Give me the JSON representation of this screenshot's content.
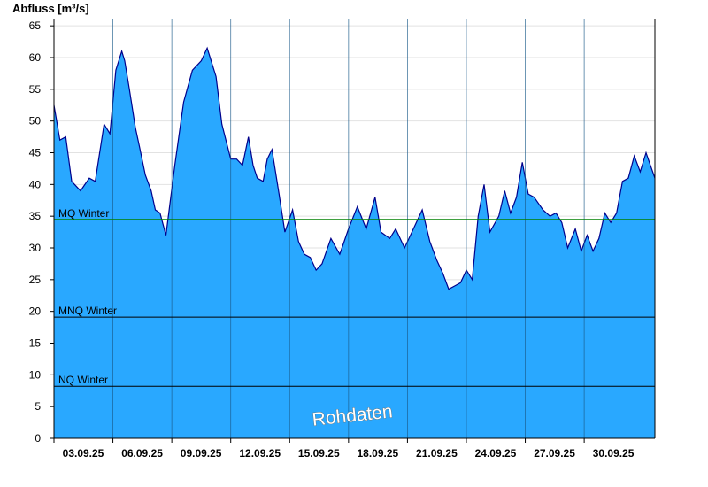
{
  "chart_data": {
    "type": "area",
    "ylabel": "Abfluss [m³/s]",
    "xlabel": "",
    "ylim": [
      0,
      66
    ],
    "yticks": [
      0,
      5,
      10,
      15,
      20,
      25,
      30,
      35,
      40,
      45,
      50,
      55,
      60,
      65
    ],
    "x_range_days": [
      0,
      10.2
    ],
    "xtick_labels": [
      "03.09.25",
      "06.09.25",
      "09.09.25",
      "12.09.25",
      "15.09.25",
      "18.09.25",
      "21.09.25",
      "24.09.25",
      "27.09.25",
      "30.09.25"
    ],
    "grid": true,
    "colors": {
      "fill": "#29a8ff",
      "line": "#00008b",
      "mq_line": "#008000",
      "ref_line": "#000000",
      "grid": "#e2e2e2",
      "vgrid": "#1a5a8a"
    },
    "reference_lines": [
      {
        "label": "MQ Winter",
        "value": 34.5,
        "color": "#008000"
      },
      {
        "label": "MNQ Winter",
        "value": 19.1,
        "color": "#000000"
      },
      {
        "label": "NQ Winter",
        "value": 8.2,
        "color": "#000000"
      }
    ],
    "watermark": "Rohdaten",
    "series": [
      {
        "x": [
          0,
          0.1,
          0.2,
          0.3,
          0.45,
          0.6,
          0.7,
          0.85,
          0.95,
          1.05,
          1.15,
          1.2,
          1.28,
          1.38,
          1.45,
          1.55,
          1.65,
          1.72,
          1.8,
          1.9,
          2.05,
          2.2,
          2.35,
          2.5,
          2.6,
          2.75,
          2.85,
          3.0,
          3.1,
          3.2,
          3.3,
          3.38,
          3.45,
          3.55,
          3.62,
          3.7,
          3.82,
          3.92,
          4.05,
          4.15,
          4.25,
          4.35,
          4.45,
          4.55,
          4.7,
          4.85,
          5.0,
          5.15,
          5.3,
          5.45,
          5.55,
          5.7,
          5.8,
          5.95,
          6.1,
          6.25,
          6.38,
          6.5,
          6.6,
          6.7,
          6.8,
          6.9,
          7.0,
          7.1,
          7.2,
          7.3,
          7.4,
          7.55,
          7.65,
          7.75,
          7.85,
          7.95,
          8.05,
          8.15,
          8.3,
          8.42,
          8.52,
          8.62,
          8.72,
          8.85,
          8.95,
          9.05,
          9.15,
          9.25,
          9.35,
          9.45,
          9.55,
          9.65,
          9.75,
          9.85,
          9.95,
          10.05,
          10.2
        ],
        "values": [
          52.5,
          47,
          47.5,
          40.5,
          39,
          41,
          40.5,
          49.5,
          48,
          58,
          61,
          59.5,
          55,
          49,
          46,
          41.5,
          39,
          36,
          35.5,
          32,
          43,
          53,
          58,
          59.5,
          61.5,
          57,
          49.5,
          44,
          44,
          43,
          47.5,
          43,
          41,
          40.5,
          44,
          45.5,
          38.5,
          32.5,
          36,
          31,
          29,
          28.5,
          26.5,
          27.5,
          31.5,
          29,
          33,
          36.5,
          33,
          38,
          32.5,
          31.5,
          33,
          30,
          33,
          36,
          31,
          28,
          26,
          23.5,
          24,
          24.5,
          26.5,
          25,
          35,
          40,
          32.5,
          35,
          39,
          35.5,
          38,
          43.5,
          38.5,
          38,
          36,
          35,
          35.5,
          34,
          30,
          33,
          29.5,
          32,
          29.5,
          31.5,
          35.5,
          34,
          35.5,
          40.5,
          41,
          44.5,
          42,
          45,
          41
        ]
      }
    ]
  }
}
